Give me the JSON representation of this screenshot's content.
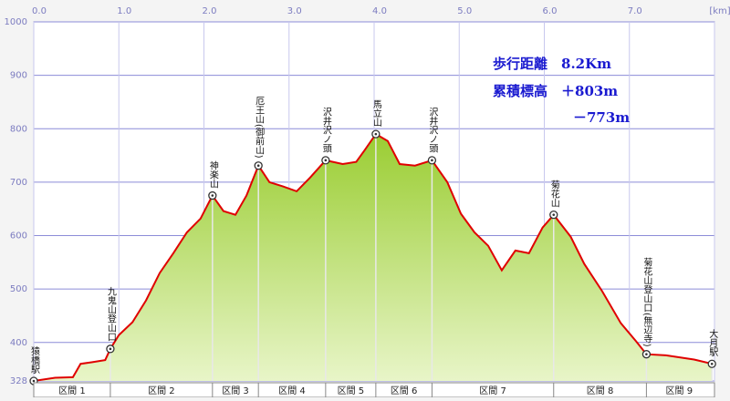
{
  "chart_data": {
    "type": "area",
    "color": "#e00000",
    "fill_top": "#9acd32",
    "fill_bottom": "#e8f5c8",
    "xlim": [
      0,
      8
    ],
    "xticks": [
      {
        "value": 0,
        "label": "0.0"
      },
      {
        "value": 1,
        "label": "1.0"
      },
      {
        "value": 2,
        "label": "2.0"
      },
      {
        "value": 3,
        "label": "3.0"
      },
      {
        "value": 4,
        "label": "4.0"
      },
      {
        "value": 5,
        "label": "5.0"
      },
      {
        "value": 6,
        "label": "6.0"
      },
      {
        "value": 7,
        "label": "7.0"
      },
      {
        "value": 8,
        "label": "[km]"
      }
    ],
    "ylim": [
      328,
      1000
    ],
    "yticks": [
      328,
      400,
      500,
      600,
      700,
      800,
      900,
      1000
    ],
    "grid": true,
    "x": [
      0.0,
      0.25,
      0.46,
      0.55,
      0.68,
      0.84,
      0.9,
      1.0,
      1.16,
      1.32,
      1.48,
      1.64,
      1.8,
      1.96,
      2.1,
      2.23,
      2.37,
      2.5,
      2.64,
      2.77,
      2.93,
      3.09,
      3.25,
      3.43,
      3.63,
      3.79,
      3.89,
      4.02,
      4.16,
      4.3,
      4.48,
      4.68,
      4.86,
      5.02,
      5.18,
      5.34,
      5.5,
      5.66,
      5.82,
      5.98,
      6.11,
      6.31,
      6.47,
      6.68,
      6.9,
      7.08,
      7.2,
      7.43,
      7.76,
      7.97
    ],
    "values": [
      328,
      334,
      335,
      360,
      363,
      367,
      388,
      414,
      438,
      479,
      530,
      567,
      606,
      632,
      675,
      646,
      639,
      675,
      731,
      700,
      692,
      683,
      709,
      741,
      734,
      738,
      760,
      790,
      777,
      734,
      731,
      741,
      700,
      641,
      606,
      581,
      535,
      572,
      567,
      615,
      639,
      598,
      547,
      496,
      436,
      402,
      378,
      376,
      368,
      360
    ],
    "waypoints": [
      {
        "name": "猿橋駅",
        "x": 0.0,
        "y": 328
      },
      {
        "name": "九鬼山登山口",
        "x": 0.9,
        "y": 388
      },
      {
        "name": "神楽山",
        "x": 2.1,
        "y": 675
      },
      {
        "name": "厄王山(御前山)",
        "x": 2.64,
        "y": 731
      },
      {
        "name": "沢井沢ノ頭",
        "x": 3.43,
        "y": 741
      },
      {
        "name": "馬立山",
        "x": 4.02,
        "y": 790
      },
      {
        "name": "沢井沢ノ頭",
        "x": 4.68,
        "y": 741
      },
      {
        "name": "菊花山",
        "x": 6.11,
        "y": 639
      },
      {
        "name": "菊花山登山口(無辺寺)",
        "x": 7.2,
        "y": 378
      },
      {
        "name": "大月駅",
        "x": 7.97,
        "y": 360
      }
    ],
    "sections": [
      "区間 1",
      "区間 2",
      "区間 3",
      "区間 4",
      "区間 5",
      "区間 6",
      "区間 7",
      "区間 8",
      "区間 9"
    ],
    "annotations": [
      "歩行距離　8.2Km",
      "累積標高　＋803m",
      "－773m"
    ]
  }
}
